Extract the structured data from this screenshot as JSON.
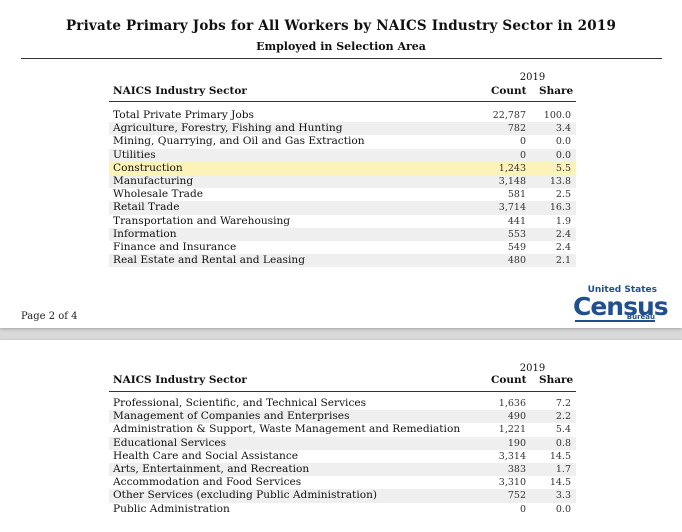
{
  "document": {
    "title": "Private Primary Jobs for All Workers by NAICS Industry Sector in 2019",
    "subtitle": "Employed in Selection Area",
    "page_label": "Page 2 of 4",
    "logo": {
      "top": "United States",
      "main": "Census",
      "bottom": "Bureau"
    }
  },
  "table_header": {
    "year": "2019",
    "sector": "NAICS Industry Sector",
    "count": "Count",
    "share": "Share"
  },
  "page1_rows": [
    {
      "sector": "Total Private Primary Jobs",
      "count": "22,787",
      "share": "100.0"
    },
    {
      "sector": "Agriculture, Forestry, Fishing and Hunting",
      "count": "782",
      "share": "3.4"
    },
    {
      "sector": "Mining, Quarrying, and Oil and Gas Extraction",
      "count": "0",
      "share": "0.0"
    },
    {
      "sector": "Utilities",
      "count": "0",
      "share": "0.0"
    },
    {
      "sector": "Construction",
      "count": "1,243",
      "share": "5.5"
    },
    {
      "sector": "Manufacturing",
      "count": "3,148",
      "share": "13.8"
    },
    {
      "sector": "Wholesale Trade",
      "count": "581",
      "share": "2.5"
    },
    {
      "sector": "Retail Trade",
      "count": "3,714",
      "share": "16.3"
    },
    {
      "sector": "Transportation and Warehousing",
      "count": "441",
      "share": "1.9"
    },
    {
      "sector": "Information",
      "count": "553",
      "share": "2.4"
    },
    {
      "sector": "Finance and Insurance",
      "count": "549",
      "share": "2.4"
    },
    {
      "sector": "Real Estate and Rental and Leasing",
      "count": "480",
      "share": "2.1"
    }
  ],
  "page2_rows": [
    {
      "sector": "Professional, Scientific, and Technical Services",
      "count": "1,636",
      "share": "7.2"
    },
    {
      "sector": "Management of Companies and Enterprises",
      "count": "490",
      "share": "2.2"
    },
    {
      "sector": "Administration & Support, Waste Management and Remediation",
      "count": "1,221",
      "share": "5.4"
    },
    {
      "sector": "Educational Services",
      "count": "190",
      "share": "0.8"
    },
    {
      "sector": "Health Care and Social Assistance",
      "count": "3,314",
      "share": "14.5"
    },
    {
      "sector": "Arts, Entertainment, and Recreation",
      "count": "383",
      "share": "1.7"
    },
    {
      "sector": "Accommodation and Food Services",
      "count": "3,310",
      "share": "14.5"
    },
    {
      "sector": "Other Services (excluding Public Administration)",
      "count": "752",
      "share": "3.3"
    },
    {
      "sector": "Public Administration",
      "count": "0",
      "share": "0.0"
    }
  ],
  "highlight_sector": "Construction",
  "colors": {
    "highlight": "#fcf3b8",
    "alt_row": "#efefef",
    "logo_blue": "#1f4f8f"
  }
}
